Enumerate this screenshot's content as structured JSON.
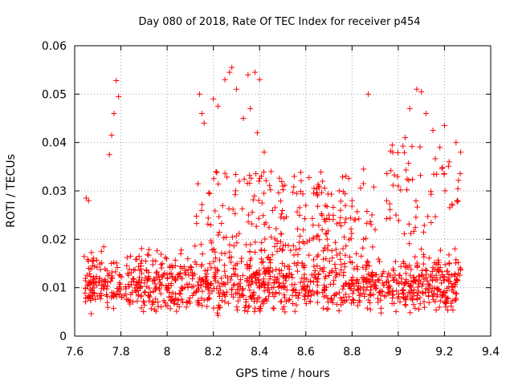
{
  "chart_data": {
    "type": "scatter",
    "title": "Day 080 of 2018, Rate Of TEC Index for receiver p454",
    "xlabel": "GPS time / hours",
    "ylabel": "ROTI / TECUs",
    "xlim": [
      7.6,
      9.4
    ],
    "ylim": [
      0,
      0.06
    ],
    "x_ticks": [
      "7.6",
      "7.8",
      "8",
      "8.2",
      "8.4",
      "8.6",
      "8.8",
      "9",
      "9.2",
      "9.4"
    ],
    "y_ticks": [
      "0",
      "0.01",
      "0.02",
      "0.03",
      "0.04",
      "0.05",
      "0.06"
    ],
    "grid": true,
    "marker": "+",
    "color": "#ff0000",
    "series": [
      {
        "name": "p454",
        "x": [
          7.65,
          7.66,
          7.78,
          7.79,
          7.77,
          7.76,
          7.75,
          8.14,
          8.15,
          8.16,
          8.2,
          8.22,
          8.25,
          8.27,
          8.28,
          8.3,
          8.33,
          8.35,
          8.38,
          8.4,
          8.36,
          8.39,
          8.42,
          8.45,
          8.5,
          8.55,
          8.6,
          8.65,
          8.7,
          8.75,
          8.8,
          8.85,
          8.87,
          8.9,
          8.95,
          9.0,
          9.03,
          9.05,
          9.08,
          9.1,
          9.12,
          9.15,
          9.18,
          9.2,
          9.22,
          9.25,
          9.27
        ],
        "y": [
          0.0285,
          0.028,
          0.0528,
          0.0495,
          0.046,
          0.0415,
          0.0375,
          0.05,
          0.046,
          0.044,
          0.049,
          0.0475,
          0.053,
          0.0545,
          0.0555,
          0.051,
          0.045,
          0.054,
          0.0545,
          0.053,
          0.047,
          0.042,
          0.038,
          0.034,
          0.031,
          0.033,
          0.027,
          0.029,
          0.025,
          0.026,
          0.028,
          0.0345,
          0.05,
          0.022,
          0.028,
          0.031,
          0.041,
          0.047,
          0.051,
          0.0505,
          0.046,
          0.0425,
          0.039,
          0.0435,
          0.036,
          0.04,
          0.038
        ],
        "dense_band": {
          "x_range": [
            7.64,
            9.27
          ],
          "y_range": [
            0.004,
            0.02
          ],
          "count": 1200
        }
      }
    ]
  }
}
